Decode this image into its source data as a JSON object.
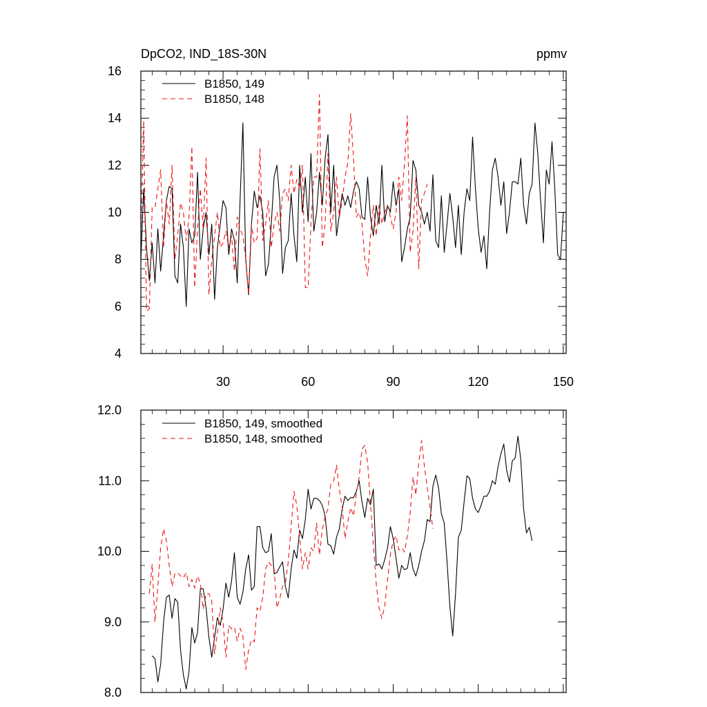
{
  "chart_data": [
    {
      "type": "line",
      "title": "DpCO2, IND_18S-30N",
      "units": "ppmv",
      "xlim": [
        1,
        151
      ],
      "ylim": [
        4,
        16
      ],
      "xticks": [
        30,
        60,
        90,
        120,
        150
      ],
      "yticks": [
        4,
        6,
        8,
        10,
        12,
        14,
        16
      ],
      "ytick_labels": [
        "4",
        "6",
        "8",
        "10",
        "12",
        "14",
        "16"
      ],
      "legend_position": "top-left",
      "series": [
        {
          "name": "B1850, 149",
          "color": "#000000",
          "dash": "solid",
          "x_start": 1,
          "values": [
            7.9,
            11.0,
            8.5,
            7.1,
            8.7,
            7.0,
            9.3,
            7.5,
            9.0,
            10.5,
            11.1,
            11.0,
            7.3,
            7.0,
            9.5,
            8.5,
            6.0,
            9.3,
            8.7,
            9.0,
            11.7,
            8.0,
            9.3,
            10.0,
            8.2,
            9.5,
            6.3,
            8.5,
            9.5,
            10.5,
            10.2,
            8.2,
            9.3,
            8.8,
            7.0,
            10.5,
            13.8,
            8.0,
            6.5,
            9.5,
            10.9,
            10.2,
            10.7,
            10.0,
            7.3,
            7.8,
            9.5,
            11.5,
            12.0,
            10.5,
            7.4,
            8.5,
            8.8,
            10.8,
            9.0,
            7.9,
            12.0,
            10.0,
            11.5,
            9.6,
            12.5,
            9.2,
            10.0,
            11.7,
            10.3,
            12.3,
            13.3,
            10.0,
            12.0,
            9.0,
            9.9,
            10.8,
            10.3,
            10.7,
            10.2,
            10.9,
            11.3,
            11.0,
            9.8,
            9.7,
            11.5,
            9.8,
            9.0,
            10.3,
            9.5,
            12.0,
            9.6,
            10.3,
            10.0,
            11.3,
            10.3,
            11.0,
            7.9,
            8.5,
            9.3,
            9.8,
            12.2,
            11.8,
            10.3,
            10.0,
            9.5,
            10.0,
            9.2,
            11.6,
            8.8,
            8.5,
            10.7,
            8.3,
            9.5,
            10.8,
            9.8,
            8.5,
            10.3,
            8.2,
            10.0,
            11.0,
            10.5,
            13.2,
            11.0,
            9.3,
            8.3,
            9.0,
            7.6,
            10.0,
            11.8,
            12.3,
            11.5,
            10.3,
            11.3,
            9.1,
            10.0,
            11.3,
            11.3,
            11.2,
            12.3,
            10.3,
            9.5,
            10.8,
            11.2,
            13.8,
            12.5,
            10.5,
            8.7,
            11.8,
            11.2,
            13.0,
            11.0,
            8.2,
            8.0,
            10.0
          ]
        },
        {
          "name": "B1850, 148",
          "color": "#ee1111",
          "dash": "dashed",
          "x_start": 1,
          "values": [
            9.0,
            13.9,
            5.8,
            5.9,
            10.2,
            10.2,
            11.0,
            11.8,
            8.5,
            10.5,
            9.5,
            12.0,
            8.0,
            9.0,
            10.4,
            10.0,
            8.8,
            9.8,
            12.8,
            6.8,
            9.3,
            11.0,
            9.3,
            12.3,
            6.5,
            8.0,
            9.0,
            10.0,
            8.5,
            8.7,
            9.2,
            8.5,
            9.0,
            7.5,
            9.8,
            9.3,
            9.0,
            8.0,
            6.5,
            9.5,
            8.7,
            8.9,
            12.7,
            8.8,
            9.5,
            10.5,
            8.5,
            9.5,
            10.0,
            9.2,
            10.8,
            11.0,
            10.5,
            12.0,
            10.8,
            11.4,
            11.0,
            12.0,
            6.8,
            6.8,
            9.5,
            11.5,
            11.5,
            15.0,
            8.5,
            9.5,
            12.5,
            9.2,
            10.0,
            11.5,
            9.8,
            10.5,
            11.5,
            12.1,
            14.2,
            12.3,
            9.8,
            10.0,
            9.5,
            8.0,
            7.3,
            9.0,
            10.3,
            9.0,
            10.3,
            9.5,
            10.0,
            10.3,
            9.8,
            9.3,
            10.0,
            11.5,
            10.5,
            12.1,
            14.1,
            8.3,
            9.2,
            11.5,
            7.6,
            10.5,
            10.8,
            11.2
          ]
        }
      ]
    },
    {
      "type": "line",
      "title": "",
      "xlim": [
        1,
        151
      ],
      "ylim": [
        8.0,
        12.0
      ],
      "xticks": [
        30,
        60,
        90,
        120,
        150
      ],
      "yticks": [
        8.0,
        9.0,
        10.0,
        11.0,
        12.0
      ],
      "ytick_labels": [
        "8.0",
        "9.0",
        "10.0",
        "11.0",
        "12.0"
      ],
      "legend_position": "top-left",
      "series": [
        {
          "name": "B1850, 149, smoothed",
          "color": "#000000",
          "dash": "solid",
          "x_start": 5,
          "values": [
            8.52,
            8.48,
            8.15,
            8.4,
            9.0,
            9.35,
            9.38,
            9.05,
            9.33,
            9.28,
            8.6,
            8.25,
            8.05,
            8.3,
            8.92,
            8.7,
            8.85,
            9.47,
            9.47,
            9.2,
            8.78,
            8.5,
            8.78,
            9.06,
            8.95,
            9.18,
            9.55,
            9.35,
            9.58,
            9.98,
            9.35,
            9.25,
            9.42,
            9.75,
            9.95,
            9.45,
            9.5,
            10.35,
            10.35,
            10.05,
            9.98,
            10.0,
            10.25,
            9.68,
            9.7,
            9.78,
            9.85,
            9.5,
            9.34,
            9.75,
            10.02,
            9.9,
            10.3,
            10.18,
            10.45,
            10.88,
            10.6,
            10.75,
            10.75,
            10.72,
            10.65,
            10.5,
            10.1,
            10.08,
            9.96,
            10.2,
            10.32,
            10.6,
            10.78,
            10.72,
            10.76,
            10.76,
            10.85,
            11.0,
            10.7,
            10.48,
            10.75,
            10.66,
            10.88,
            9.8,
            9.82,
            9.75,
            9.88,
            10.05,
            10.35,
            10.18,
            9.9,
            9.62,
            9.8,
            9.74,
            9.76,
            9.98,
            9.75,
            9.65,
            9.8,
            10.0,
            10.15,
            10.45,
            10.42,
            10.92,
            11.08,
            10.9,
            10.53,
            10.4,
            9.85,
            9.22,
            8.8,
            9.4,
            10.2,
            10.3,
            10.7,
            11.07,
            11.03,
            10.75,
            10.6,
            10.55,
            10.65,
            10.78,
            10.78,
            10.85,
            11.0,
            10.95,
            11.2,
            11.38,
            11.52,
            11.15,
            10.98,
            11.28,
            11.32,
            11.63,
            11.3,
            10.6,
            10.26,
            10.34,
            10.15
          ]
        },
        {
          "name": "B1850, 148, smoothed",
          "color": "#ee1111",
          "dash": "dashed",
          "x_start": 4,
          "values": [
            9.4,
            9.82,
            9.0,
            9.5,
            10.05,
            10.32,
            10.15,
            9.8,
            9.5,
            9.68,
            9.7,
            9.65,
            9.62,
            9.7,
            9.5,
            9.6,
            9.48,
            9.65,
            9.55,
            9.18,
            9.4,
            9.4,
            9.3,
            8.55,
            8.85,
            9.2,
            9.0,
            8.5,
            8.95,
            8.9,
            8.92,
            8.73,
            8.91,
            8.8,
            8.33,
            8.6,
            8.75,
            8.72,
            9.2,
            9.15,
            9.35,
            9.75,
            9.85,
            9.8,
            9.75,
            9.2,
            9.33,
            9.5,
            9.56,
            9.85,
            10.35,
            10.85,
            10.65,
            10.2,
            9.75,
            9.98,
            9.75,
            10.05,
            10.0,
            10.4,
            9.95,
            10.3,
            10.5,
            10.6,
            10.95,
            11.0,
            11.22,
            10.88,
            10.62,
            10.18,
            10.42,
            10.62,
            10.5,
            10.82,
            11.05,
            11.45,
            11.5,
            11.25,
            10.68,
            10.1,
            9.54,
            9.2,
            9.05,
            9.22,
            9.6,
            9.95,
            10.15,
            10.22,
            10.02,
            10.05,
            9.99,
            10.22,
            10.55,
            11.05,
            10.8,
            11.25,
            11.57,
            11.2,
            10.9,
            10.62,
            10.32
          ]
        }
      ]
    }
  ]
}
